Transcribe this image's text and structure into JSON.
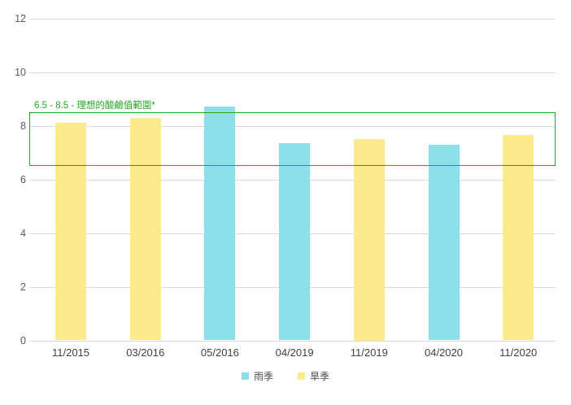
{
  "chart_data": {
    "type": "bar",
    "title": "",
    "categories": [
      "11/2015",
      "03/2016",
      "05/2016",
      "04/2019",
      "11/2019",
      "04/2020",
      "11/2020"
    ],
    "series": [
      {
        "name": "雨季",
        "color": "#8ddfe9",
        "values": [
          null,
          null,
          8.7,
          7.35,
          null,
          7.3,
          null
        ]
      },
      {
        "name": "旱季",
        "color": "#fbeb8d",
        "values": [
          8.1,
          8.3,
          null,
          null,
          7.5,
          null,
          7.65
        ]
      }
    ],
    "ylim": [
      0,
      12
    ],
    "yticks": [
      0,
      2,
      4,
      6,
      8,
      10,
      12
    ],
    "xlabel": "",
    "ylabel": "",
    "grid": true,
    "legend_position": "bottom",
    "annotation": {
      "label": "6.5 - 8.5 - 理想的酸鹼值範圍*",
      "range_from": 6.5,
      "range_to": 8.5,
      "color": "#21a621"
    }
  },
  "colors": {
    "background": "#ffffff",
    "gridline": "#dadada",
    "axis_tick_text": "#5b5b5b",
    "category_text": "#3f3f3f",
    "legend_text": "#4a4a4a",
    "rainy_season": "#8ddfe9",
    "dry_season": "#fbeb8d",
    "annotation_green": "#21a621"
  }
}
